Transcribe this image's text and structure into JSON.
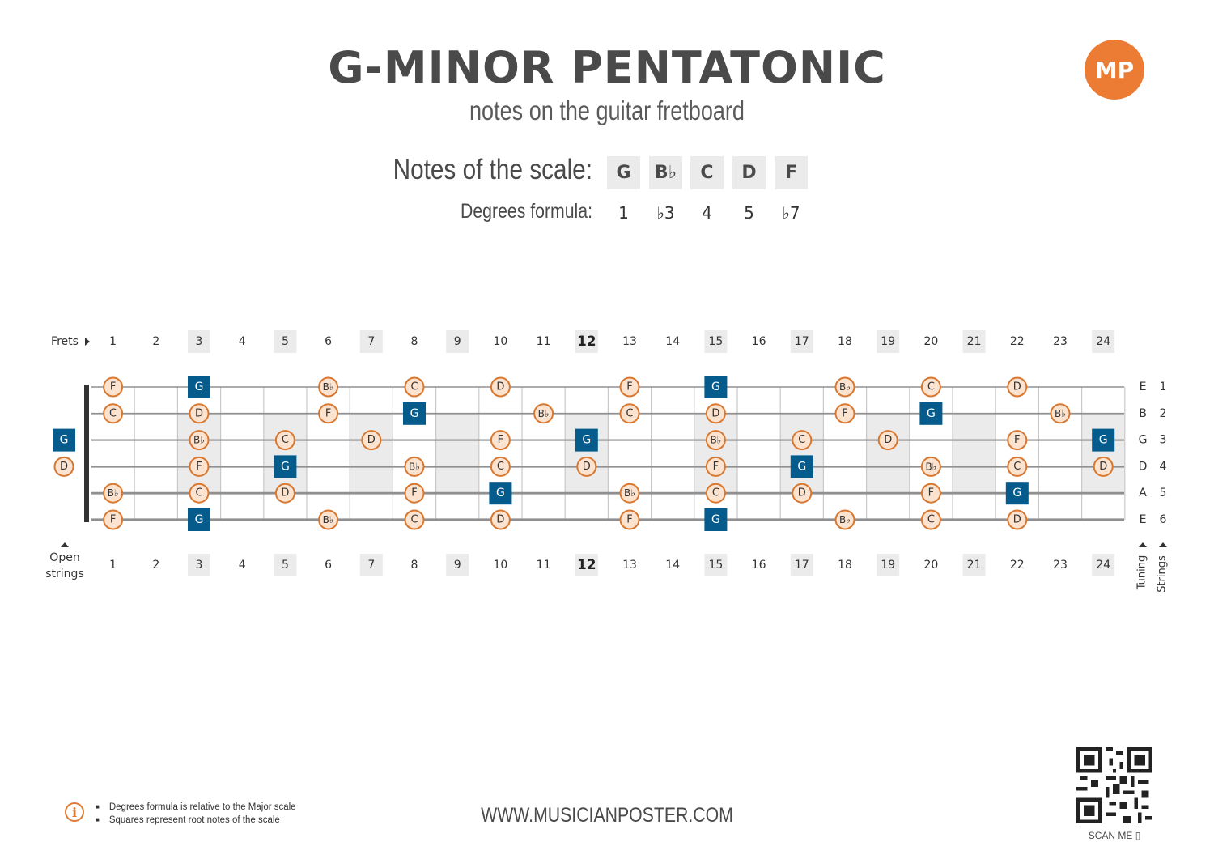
{
  "header": {
    "title": "G-MINOR PENTATONIC",
    "subtitle": "notes on the guitar fretboard",
    "logo_text": "MP",
    "brand_color": "#ec7b33"
  },
  "scale": {
    "notes_label": "Notes of the scale:",
    "degrees_label": "Degrees formula:",
    "notes": [
      "G",
      "B♭",
      "C",
      "D",
      "F"
    ],
    "degrees": [
      "1",
      "♭3",
      "4",
      "5",
      "♭7"
    ]
  },
  "fretboard": {
    "frets_label": "Frets",
    "open_strings_label": [
      "Open",
      "strings"
    ],
    "tuning_label": "Tuning",
    "strings_label": "Strings",
    "fret_numbers": [
      "1",
      "2",
      "3",
      "4",
      "5",
      "6",
      "7",
      "8",
      "9",
      "10",
      "11",
      "12",
      "13",
      "14",
      "15",
      "16",
      "17",
      "18",
      "19",
      "20",
      "21",
      "22",
      "23",
      "24"
    ],
    "highlighted_frets": [
      3,
      5,
      7,
      9,
      12,
      15,
      17,
      19,
      21,
      24
    ],
    "strings": [
      {
        "tuning": "E",
        "number": "1",
        "open": "",
        "notes": [
          "F",
          "",
          "G",
          "",
          "",
          "B♭",
          "",
          "C",
          "",
          "D",
          "",
          "",
          "F",
          "",
          "G",
          "",
          "",
          "B♭",
          "",
          "C",
          "",
          "D",
          "",
          ""
        ]
      },
      {
        "tuning": "B",
        "number": "2",
        "open": "",
        "notes": [
          "C",
          "",
          "D",
          "",
          "",
          "F",
          "",
          "G",
          "",
          "",
          "B♭",
          "",
          "C",
          "",
          "D",
          "",
          "",
          "F",
          "",
          "G",
          "",
          "",
          "B♭",
          ""
        ]
      },
      {
        "tuning": "G",
        "number": "3",
        "open": "G",
        "notes": [
          "",
          "",
          "B♭",
          "",
          "C",
          "",
          "D",
          "",
          "",
          "F",
          "",
          "G",
          "",
          "",
          "B♭",
          "",
          "C",
          "",
          "D",
          "",
          "",
          "F",
          "",
          "G"
        ]
      },
      {
        "tuning": "D",
        "number": "4",
        "open": "D",
        "notes": [
          "",
          "",
          "F",
          "",
          "G",
          "",
          "",
          "B♭",
          "",
          "C",
          "",
          "D",
          "",
          "",
          "F",
          "",
          "G",
          "",
          "",
          "B♭",
          "",
          "C",
          "",
          "D"
        ]
      },
      {
        "tuning": "A",
        "number": "5",
        "open": "",
        "notes": [
          "B♭",
          "",
          "C",
          "",
          "D",
          "",
          "",
          "F",
          "",
          "G",
          "",
          "",
          "B♭",
          "",
          "C",
          "",
          "D",
          "",
          "",
          "F",
          "",
          "G",
          "",
          ""
        ]
      },
      {
        "tuning": "E",
        "number": "6",
        "open": "",
        "notes": [
          "F",
          "",
          "G",
          "",
          "",
          "B♭",
          "",
          "C",
          "",
          "D",
          "",
          "",
          "F",
          "",
          "G",
          "",
          "",
          "B♭",
          "",
          "C",
          "",
          "D",
          "",
          ""
        ]
      }
    ],
    "root_note": "G",
    "root_color": "#045b8c",
    "note_fill": "#fbe3d0",
    "note_border": "#d9772f"
  },
  "footer": {
    "info_icon": "info-icon",
    "notes": [
      "Degrees formula is relative to the Major scale",
      "Squares represent root notes of the scale"
    ],
    "website": "WWW.MUSICIANPOSTER.COM",
    "scan_label": "SCAN ME"
  }
}
